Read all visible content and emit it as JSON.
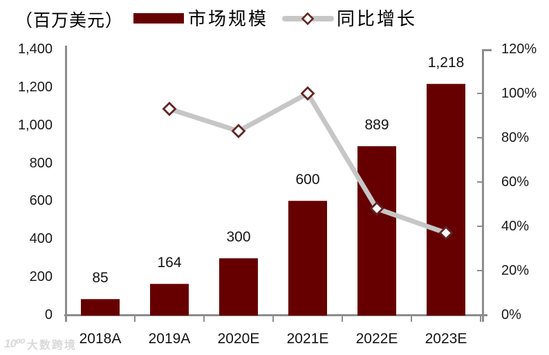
{
  "header": {
    "unit_label": "（百万美元）",
    "legend": {
      "bar_label": "市场规模",
      "line_label": "同比增长"
    }
  },
  "colors": {
    "bar": "#660000",
    "line": "#C6C6C6",
    "marker_fill": "#FFFFFF",
    "marker_border": "#632423",
    "axis": "#8C8C8C",
    "watermark": "#D9D9D9"
  },
  "chart_data": {
    "type": "bar",
    "combo": "bar+line",
    "title": "",
    "categories": [
      "2018A",
      "2019A",
      "2020E",
      "2021E",
      "2022E",
      "2023E"
    ],
    "series": [
      {
        "name": "市场规模",
        "type": "bar",
        "axis": "left",
        "values": [
          85,
          164,
          300,
          600,
          889,
          1218
        ],
        "value_labels": [
          "85",
          "164",
          "300",
          "600",
          "889",
          "1,218"
        ],
        "color": "#660000"
      },
      {
        "name": "同比增长",
        "type": "line",
        "axis": "right",
        "values_percent": [
          null,
          93,
          83,
          100,
          48,
          37
        ],
        "color": "#C6C6C6",
        "marker": "diamond"
      }
    ],
    "left_axis": {
      "min": 0,
      "max": 1400,
      "step": 200,
      "tick_labels": [
        "0",
        "200",
        "400",
        "600",
        "800",
        "1,000",
        "1,200",
        "1,400"
      ]
    },
    "right_axis": {
      "min": 0,
      "max": 120,
      "step": 20,
      "tick_labels": [
        "0%",
        "20%",
        "40%",
        "60%",
        "80%",
        "100%",
        "120%"
      ]
    },
    "grid": false,
    "legend_position": "top"
  },
  "watermark": {
    "logo": "10⁰⁰",
    "text": "大数跨境"
  }
}
